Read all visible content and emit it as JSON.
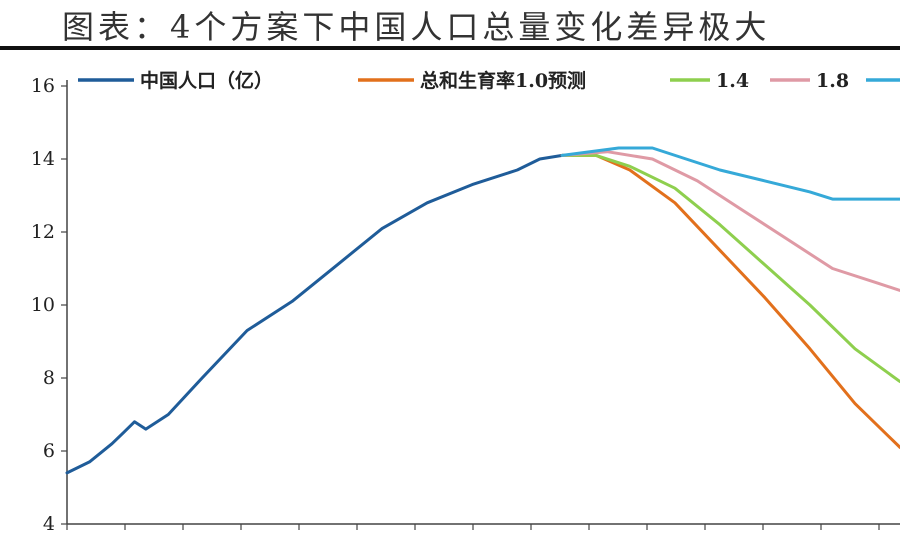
{
  "title": "图表：4个方案下中国人口总量变化差异极大",
  "colors": {
    "history": "#1f5c99",
    "tfr10": "#e2701c",
    "tfr14": "#8ecf4e",
    "tfr18": "#df9aa5",
    "tfr21": "#35a9d8"
  },
  "chart_data": {
    "type": "line",
    "title": "图表：4个方案下中国人口总量变化差异极大",
    "xlabel": "",
    "ylabel": "",
    "ylim": [
      4,
      16
    ],
    "yticks": [
      4,
      6,
      8,
      10,
      12,
      14,
      16
    ],
    "grid": false,
    "legend_position": "top",
    "series": [
      {
        "name": "中国人口（亿）",
        "color_key": "history",
        "points": [
          [
            0,
            5.4
          ],
          [
            2,
            5.7
          ],
          [
            4,
            6.2
          ],
          [
            5,
            6.5
          ],
          [
            6,
            6.8
          ],
          [
            7,
            6.6
          ],
          [
            9,
            7.0
          ],
          [
            12,
            8.0
          ],
          [
            16,
            9.3
          ],
          [
            20,
            10.1
          ],
          [
            24,
            11.1
          ],
          [
            28,
            12.1
          ],
          [
            32,
            12.8
          ],
          [
            36,
            13.3
          ],
          [
            40,
            13.7
          ],
          [
            42,
            14.0
          ],
          [
            44,
            14.1
          ]
        ]
      },
      {
        "name": "总和生育率1.0预测",
        "color_key": "tfr10",
        "points": [
          [
            44,
            14.1
          ],
          [
            47,
            14.1
          ],
          [
            50,
            13.7
          ],
          [
            54,
            12.8
          ],
          [
            58,
            11.5
          ],
          [
            62,
            10.2
          ],
          [
            66,
            8.8
          ],
          [
            70,
            7.3
          ],
          [
            74,
            6.1
          ]
        ]
      },
      {
        "name": "1.4",
        "color_key": "tfr14",
        "points": [
          [
            44,
            14.1
          ],
          [
            47,
            14.1
          ],
          [
            50,
            13.8
          ],
          [
            54,
            13.2
          ],
          [
            58,
            12.2
          ],
          [
            62,
            11.1
          ],
          [
            66,
            10.0
          ],
          [
            70,
            8.8
          ],
          [
            74,
            7.9
          ]
        ]
      },
      {
        "name": "1.8",
        "color_key": "tfr18",
        "points": [
          [
            44,
            14.1
          ],
          [
            48,
            14.2
          ],
          [
            52,
            14.0
          ],
          [
            56,
            13.4
          ],
          [
            60,
            12.6
          ],
          [
            64,
            11.8
          ],
          [
            68,
            11.0
          ],
          [
            72,
            10.6
          ],
          [
            74,
            10.4
          ]
        ]
      },
      {
        "name": "",
        "color_key": "tfr21",
        "points": [
          [
            44,
            14.1
          ],
          [
            49,
            14.3
          ],
          [
            52,
            14.3
          ],
          [
            55,
            14.0
          ],
          [
            58,
            13.7
          ],
          [
            62,
            13.4
          ],
          [
            66,
            13.1
          ],
          [
            68,
            12.9
          ],
          [
            74,
            12.9
          ]
        ]
      }
    ]
  }
}
